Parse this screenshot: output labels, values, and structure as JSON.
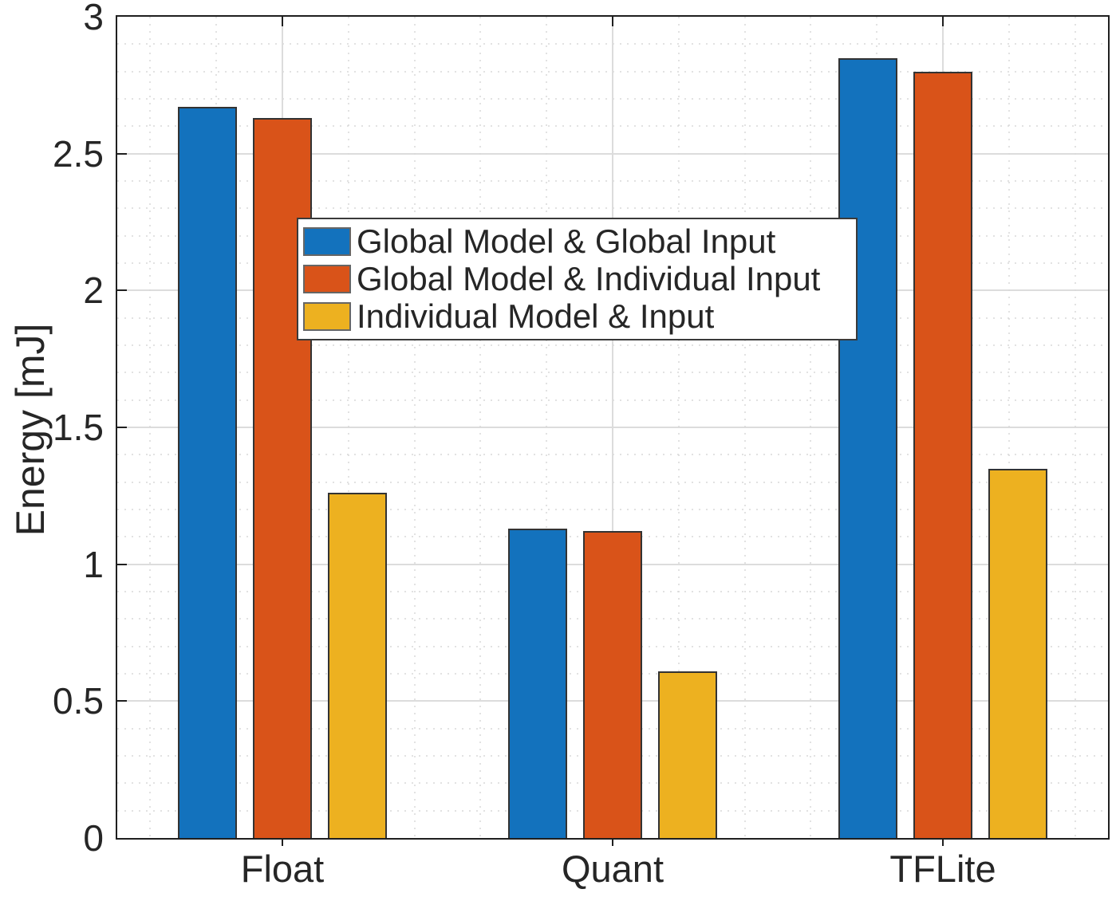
{
  "chart_data": {
    "type": "bar",
    "title": "",
    "xlabel": "",
    "ylabel": "Energy [mJ]",
    "categories": [
      "Float",
      "Quant",
      "TFLite"
    ],
    "series": [
      {
        "name": "Global Model & Global Input",
        "color": "#1372BD",
        "values": [
          2.67,
          1.13,
          2.85
        ]
      },
      {
        "name": "Global Model & Individual Input",
        "color": "#D95319",
        "values": [
          2.63,
          1.12,
          2.8
        ]
      },
      {
        "name": "Individual Model & Input",
        "color": "#EDB120",
        "values": [
          1.26,
          0.61,
          1.35
        ]
      }
    ],
    "ylim": [
      0,
      3
    ],
    "ytick_values": [
      0,
      0.5,
      1,
      1.5,
      2,
      2.5,
      3
    ],
    "ytick_labels": [
      "0",
      "0.5",
      "1",
      "1.5",
      "2",
      "2.5",
      "3"
    ],
    "y_minor_step": 0.1,
    "x_minor_offsets": [
      -0.4,
      -0.2,
      0.2,
      0.4
    ],
    "grid": "major-solid + minor-dotted",
    "legend_position": "inside-upper-center",
    "bar_edge_color": "#333333",
    "axis_color": "#1f1f1f",
    "tick_label_color": "#262626",
    "grid_major_color": "#dcdcdc",
    "grid_minor_color": "#d8d8d8",
    "background": "#ffffff"
  }
}
